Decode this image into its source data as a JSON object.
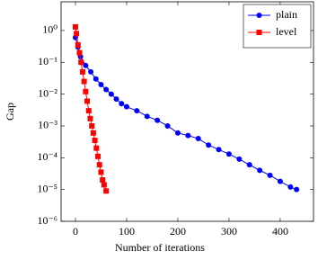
{
  "chart_data": {
    "type": "line",
    "x_label": "Number of iterations",
    "y_label": "Gap",
    "xlim": [
      -28,
      465
    ],
    "xticks": [
      0,
      100,
      200,
      300,
      400
    ],
    "ylim": [
      1e-06,
      8
    ],
    "log_y": true,
    "yticks": [
      {
        "value": 1e-06,
        "label": "10⁻⁶"
      },
      {
        "value": 1e-05,
        "label": "10⁻⁵"
      },
      {
        "value": 0.0001,
        "label": "10⁻⁴"
      },
      {
        "value": 0.001,
        "label": "10⁻³"
      },
      {
        "value": 0.01,
        "label": "10⁻²"
      },
      {
        "value": 0.1,
        "label": "10⁻¹"
      },
      {
        "value": 1,
        "label": "10⁰"
      }
    ],
    "legend": "top-right",
    "series": [
      {
        "name": "plain",
        "color": "#0000ff",
        "marker": "circle",
        "x": [
          0,
          5,
          10,
          20,
          30,
          40,
          50,
          60,
          70,
          80,
          90,
          100,
          120,
          140,
          160,
          180,
          200,
          220,
          240,
          260,
          280,
          300,
          320,
          340,
          360,
          380,
          400,
          420,
          432
        ],
        "values": [
          0.6,
          0.3,
          0.15,
          0.08,
          0.05,
          0.03,
          0.02,
          0.014,
          0.01,
          0.007,
          0.005,
          0.004,
          0.003,
          0.002,
          0.0015,
          0.001,
          0.0006,
          0.0005,
          0.0004,
          0.00025,
          0.00018,
          0.00013,
          9e-05,
          6e-05,
          4e-05,
          2.8e-05,
          1.8e-05,
          1.2e-05,
          1e-05
        ]
      },
      {
        "name": "level",
        "color": "#ff0000",
        "marker": "square",
        "x": [
          0,
          2,
          5,
          8,
          11,
          14,
          17,
          20,
          23,
          26,
          29,
          32,
          35,
          38,
          41,
          44,
          47,
          50,
          53,
          56,
          60
        ],
        "values": [
          1.3,
          0.8,
          0.35,
          0.2,
          0.1,
          0.05,
          0.025,
          0.012,
          0.006,
          0.003,
          0.0017,
          0.001,
          0.0006,
          0.00035,
          0.0002,
          0.00011,
          6e-05,
          3.5e-05,
          2e-05,
          1.4e-05,
          9e-06
        ]
      }
    ]
  }
}
